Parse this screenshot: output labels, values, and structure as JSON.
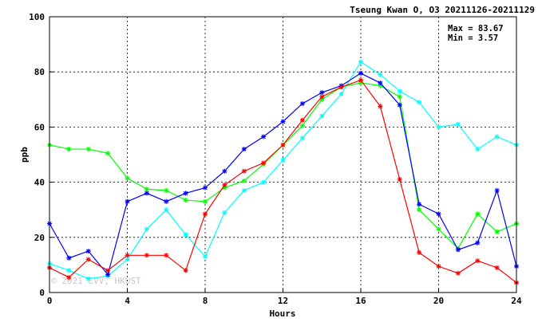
{
  "chart_data": {
    "type": "line",
    "title": "Tseung Kwan O, O3 20211126-20211129",
    "xlabel": "Hours",
    "ylabel": "ppb",
    "xlim": [
      0,
      24
    ],
    "ylim": [
      0,
      100
    ],
    "x_ticks": [
      0,
      4,
      8,
      12,
      16,
      20,
      24
    ],
    "y_ticks": [
      0,
      20,
      40,
      60,
      80,
      100
    ],
    "grid": true,
    "stats": {
      "max_text": "Max = 83.67",
      "min_text": "Min =  3.57"
    },
    "watermark": "© 2021 EVV, HKUST",
    "x": [
      0,
      1,
      2,
      3,
      4,
      5,
      6,
      7,
      8,
      9,
      10,
      11,
      12,
      13,
      14,
      15,
      16,
      17,
      18,
      19,
      20,
      21,
      22,
      23,
      24
    ],
    "series": [
      {
        "color": "#00ff00",
        "values": [
          53.5,
          52,
          52,
          50.5,
          41.5,
          37.5,
          37,
          33.5,
          33,
          38,
          40.5,
          46.5,
          53.5,
          60.5,
          70,
          74.5,
          76,
          75,
          71,
          30,
          23,
          16,
          28.5,
          22,
          25
        ]
      },
      {
        "color": "#00ffff",
        "values": [
          10.5,
          8,
          5,
          6,
          12,
          23,
          30,
          21,
          13,
          29,
          37,
          40,
          48,
          56,
          64,
          72,
          83.67,
          79,
          73,
          69,
          60,
          61,
          52,
          56.5,
          53.5
        ]
      },
      {
        "color": "#0000ff",
        "values": [
          25,
          12.5,
          15,
          6.5,
          33,
          36,
          33,
          36,
          38,
          44,
          52,
          56.5,
          62,
          68.5,
          72.5,
          75,
          79.5,
          76,
          68,
          32,
          28.5,
          15.5,
          18,
          37,
          9.5
        ]
      },
      {
        "color": "#ff0000",
        "values": [
          9,
          5.5,
          12,
          8,
          13.5,
          13.5,
          13.5,
          8,
          28.5,
          39,
          44,
          47,
          53.5,
          62.5,
          71,
          74.5,
          77,
          67.5,
          41,
          14.5,
          9.5,
          7,
          11.5,
          9,
          3.57
        ]
      }
    ]
  }
}
